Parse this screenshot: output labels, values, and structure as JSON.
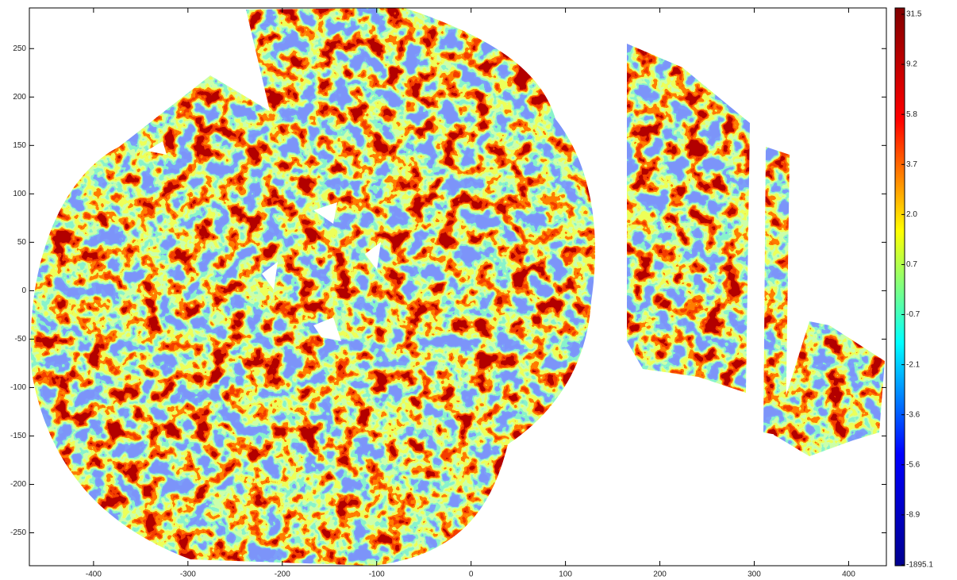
{
  "chart_data": {
    "type": "heatmap",
    "colormap": "jet",
    "xlim": [
      -468,
      440
    ],
    "ylim": [
      -284,
      292
    ],
    "xticks": [
      -400,
      -300,
      -200,
      -100,
      0,
      100,
      200,
      300,
      400
    ],
    "yticks": [
      -250,
      -200,
      -150,
      -100,
      -50,
      0,
      50,
      100,
      150,
      200,
      250
    ],
    "colorbar": {
      "labels": [
        "31.5",
        "9.2",
        "5.8",
        "3.7",
        "2.0",
        "0.7",
        "-0.7",
        "-2.1",
        "-3.6",
        "-5.6",
        "-8.9",
        "-1895.1"
      ]
    }
  }
}
